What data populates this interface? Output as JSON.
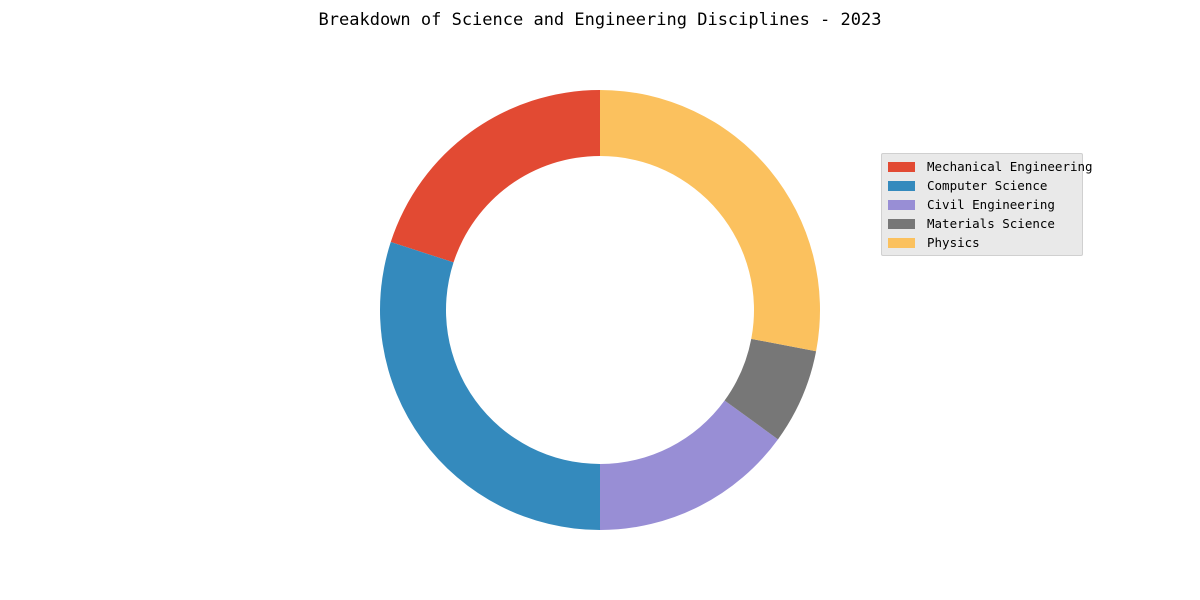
{
  "chart_data": {
    "type": "pie",
    "style": "donut",
    "title": "Breakdown of Science and Engineering Disciplines - 2023",
    "legend_position": "right",
    "start_angle_deg": 90,
    "direction": "counterclockwise",
    "slices": [
      {
        "label": "Mechanical Engineering",
        "value": 20,
        "color": "#e24a33"
      },
      {
        "label": "Computer Science",
        "value": 30,
        "color": "#348abd"
      },
      {
        "label": "Civil Engineering",
        "value": 15,
        "color": "#988ed5"
      },
      {
        "label": "Materials Science",
        "value": 7,
        "color": "#777777"
      },
      {
        "label": "Physics",
        "value": 28,
        "color": "#fbc15e"
      }
    ]
  }
}
